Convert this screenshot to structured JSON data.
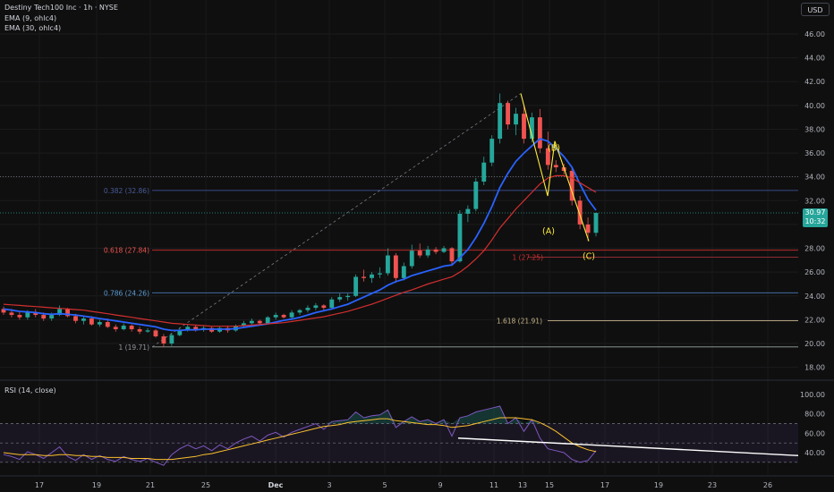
{
  "header": {
    "title": "Destiny Tech100 Inc · 1h · NYSE",
    "ema9": "EMA (9, ohlc4)",
    "ema30": "EMA (30, ohlc4)",
    "currency": "USD",
    "rsi_label": "RSI (14, close)"
  },
  "last_price": {
    "price": "30.97",
    "countdown": "10:32"
  },
  "colors": {
    "up": "#26a69a",
    "down": "#ef5350",
    "ema9": "#2962ff",
    "ema30": "#d32f2f",
    "rsi": "#7e57c2",
    "rsi_ma": "#fbc02d",
    "wave": "#ffeb3b",
    "fib_blue": "#2962ff",
    "fib_red": "#d32f2f",
    "fib_tan": "#c8b68a",
    "trendline": "#ffffff"
  },
  "chart_data": [
    {
      "type": "candlestick",
      "title": "Destiny Tech100 Inc · 1h · NYSE",
      "ylim": [
        17.0,
        47.5
      ],
      "y_ticks": [
        18,
        20,
        22,
        24,
        26,
        28,
        30,
        32,
        34,
        36,
        38,
        40,
        42,
        44,
        46
      ],
      "y_tick_labels": [
        "18.00",
        "20.00",
        "22.00",
        "24.00",
        "26.00",
        "28.00",
        "30.00",
        "32.00",
        "34.00",
        "36.00",
        "38.00",
        "40.00",
        "42.00",
        "44.00",
        "46.00"
      ],
      "x_tick_labels": [
        "17",
        "19",
        "21",
        "25",
        "Dec",
        "3",
        "5",
        "9",
        "11",
        "13",
        "15",
        "17",
        "19",
        "23",
        "26"
      ],
      "ohlc": [
        [
          22.9,
          23.1,
          22.4,
          22.6
        ],
        [
          22.6,
          22.9,
          22.2,
          22.4
        ],
        [
          22.4,
          22.7,
          22.0,
          22.2
        ],
        [
          22.2,
          22.8,
          22.0,
          22.6
        ],
        [
          22.6,
          22.9,
          22.2,
          22.4
        ],
        [
          22.4,
          22.6,
          21.9,
          22.1
        ],
        [
          22.1,
          22.6,
          21.9,
          22.4
        ],
        [
          22.4,
          23.2,
          22.3,
          22.9
        ],
        [
          22.9,
          23.0,
          22.2,
          22.3
        ],
        [
          22.3,
          22.5,
          21.7,
          21.9
        ],
        [
          21.9,
          22.3,
          21.6,
          22.1
        ],
        [
          22.1,
          22.3,
          21.5,
          21.6
        ],
        [
          21.6,
          22.0,
          21.4,
          21.8
        ],
        [
          21.8,
          22.1,
          21.3,
          21.4
        ],
        [
          21.4,
          21.6,
          21.0,
          21.2
        ],
        [
          21.2,
          21.7,
          21.1,
          21.5
        ],
        [
          21.5,
          21.6,
          21.0,
          21.2
        ],
        [
          21.2,
          21.4,
          20.8,
          21.0
        ],
        [
          21.0,
          21.3,
          20.9,
          21.1
        ],
        [
          21.1,
          21.2,
          20.5,
          20.6
        ],
        [
          20.6,
          20.8,
          19.7,
          20.0
        ],
        [
          20.0,
          20.9,
          19.8,
          20.7
        ],
        [
          20.7,
          21.3,
          20.6,
          21.1
        ],
        [
          21.1,
          21.6,
          21.0,
          21.4
        ],
        [
          21.4,
          21.5,
          21.0,
          21.2
        ],
        [
          21.2,
          21.5,
          21.0,
          21.3
        ],
        [
          21.3,
          21.4,
          20.9,
          21.0
        ],
        [
          21.0,
          21.4,
          20.9,
          21.3
        ],
        [
          21.3,
          21.5,
          20.9,
          21.1
        ],
        [
          21.1,
          21.6,
          21.0,
          21.5
        ],
        [
          21.5,
          21.9,
          21.4,
          21.7
        ],
        [
          21.7,
          22.1,
          21.6,
          21.9
        ],
        [
          21.9,
          22.0,
          21.6,
          21.7
        ],
        [
          21.7,
          22.3,
          21.6,
          22.2
        ],
        [
          22.2,
          22.6,
          22.0,
          22.4
        ],
        [
          22.4,
          22.5,
          22.1,
          22.2
        ],
        [
          22.2,
          22.8,
          22.1,
          22.6
        ],
        [
          22.6,
          22.9,
          22.4,
          22.8
        ],
        [
          22.8,
          23.2,
          22.6,
          23.0
        ],
        [
          23.0,
          23.4,
          22.8,
          23.2
        ],
        [
          23.2,
          23.3,
          22.8,
          23.0
        ],
        [
          23.0,
          23.9,
          22.9,
          23.7
        ],
        [
          23.7,
          24.2,
          23.5,
          23.9
        ],
        [
          23.9,
          24.2,
          23.6,
          24.0
        ],
        [
          24.0,
          25.8,
          23.9,
          25.6
        ],
        [
          25.6,
          26.2,
          25.2,
          25.5
        ],
        [
          25.5,
          26.0,
          25.1,
          25.8
        ],
        [
          25.8,
          26.4,
          25.5,
          25.9
        ],
        [
          25.9,
          28.0,
          25.7,
          27.4
        ],
        [
          27.4,
          27.6,
          25.1,
          25.5
        ],
        [
          25.5,
          26.8,
          25.3,
          26.5
        ],
        [
          26.5,
          28.3,
          26.3,
          27.8
        ],
        [
          27.8,
          28.4,
          27.2,
          27.4
        ],
        [
          27.4,
          28.2,
          27.2,
          27.9
        ],
        [
          27.9,
          28.1,
          27.5,
          27.7
        ],
        [
          27.7,
          28.2,
          27.6,
          28.0
        ],
        [
          28.0,
          28.1,
          26.5,
          26.9
        ],
        [
          26.9,
          31.2,
          26.8,
          30.9
        ],
        [
          30.9,
          31.6,
          30.2,
          31.3
        ],
        [
          31.3,
          33.9,
          31.1,
          33.6
        ],
        [
          33.6,
          35.7,
          33.3,
          35.2
        ],
        [
          35.2,
          37.5,
          34.9,
          37.2
        ],
        [
          37.2,
          41.0,
          36.8,
          40.2
        ],
        [
          40.2,
          40.4,
          38.0,
          38.4
        ],
        [
          38.4,
          39.8,
          37.5,
          39.3
        ],
        [
          39.3,
          40.0,
          36.8,
          37.2
        ],
        [
          37.2,
          39.4,
          36.9,
          39.0
        ],
        [
          39.0,
          39.7,
          36.0,
          36.4
        ],
        [
          36.4,
          37.8,
          34.6,
          35.0
        ],
        [
          35.0,
          35.4,
          34.4,
          34.8
        ],
        [
          34.8,
          35.1,
          34.2,
          34.5
        ],
        [
          34.5,
          34.8,
          31.6,
          32.0
        ],
        [
          32.0,
          32.4,
          29.6,
          30.0
        ],
        [
          30.0,
          30.6,
          28.6,
          29.3
        ],
        [
          29.3,
          31.0,
          29.0,
          30.97
        ]
      ],
      "series": [
        {
          "name": "EMA (9, ohlc4)",
          "values": [
            22.9,
            22.8,
            22.7,
            22.65,
            22.6,
            22.5,
            22.45,
            22.5,
            22.45,
            22.4,
            22.3,
            22.2,
            22.1,
            22.0,
            21.9,
            21.8,
            21.7,
            21.6,
            21.5,
            21.4,
            21.2,
            21.1,
            21.1,
            21.15,
            21.15,
            21.2,
            21.2,
            21.2,
            21.2,
            21.25,
            21.35,
            21.45,
            21.55,
            21.65,
            21.8,
            21.95,
            22.05,
            22.2,
            22.4,
            22.6,
            22.75,
            22.9,
            23.1,
            23.3,
            23.6,
            23.9,
            24.2,
            24.5,
            24.9,
            25.2,
            25.4,
            25.7,
            25.9,
            26.1,
            26.3,
            26.5,
            26.6,
            27.2,
            27.9,
            28.9,
            30.1,
            31.5,
            33.1,
            34.3,
            35.3,
            36.0,
            36.6,
            37.2,
            37.0,
            36.4,
            35.7,
            34.8,
            33.4,
            32.1,
            31.2
          ]
        },
        {
          "name": "EMA (30, ohlc4)",
          "values": [
            23.3,
            23.25,
            23.2,
            23.15,
            23.1,
            23.05,
            23.0,
            22.95,
            22.9,
            22.85,
            22.8,
            22.7,
            22.6,
            22.5,
            22.4,
            22.3,
            22.2,
            22.1,
            22.0,
            21.9,
            21.8,
            21.7,
            21.65,
            21.6,
            21.55,
            21.5,
            21.45,
            21.45,
            21.45,
            21.45,
            21.5,
            21.55,
            21.6,
            21.65,
            21.7,
            21.75,
            21.85,
            21.95,
            22.05,
            22.15,
            22.25,
            22.4,
            22.55,
            22.7,
            22.9,
            23.1,
            23.3,
            23.55,
            23.8,
            24.05,
            24.3,
            24.5,
            24.75,
            25.0,
            25.2,
            25.4,
            25.6,
            26.0,
            26.5,
            27.1,
            27.8,
            28.7,
            29.7,
            30.5,
            31.3,
            32.0,
            32.7,
            33.4,
            33.9,
            34.1,
            34.1,
            33.9,
            33.5,
            33.1,
            32.7
          ]
        }
      ],
      "fib_levels": [
        {
          "label": "0.382 (32.86)",
          "value": 32.86
        },
        {
          "label": "0.618 (27.84)",
          "value": 27.84
        },
        {
          "label": "0.786 (24.26)",
          "value": 24.26
        },
        {
          "label": "1 (19.71)",
          "value": 19.71
        },
        {
          "label": "1 (27.25)",
          "value": 27.25
        },
        {
          "label": "1.618 (21.91)",
          "value": 21.91
        }
      ],
      "reference_line": 34.0,
      "wave_labels": [
        "(A)",
        "(B)",
        "(C)"
      ],
      "wave_points": [
        [
          41.0,
          0
        ],
        [
          32.4,
          0
        ],
        [
          37.0,
          0
        ],
        [
          28.6,
          0
        ]
      ]
    },
    {
      "type": "line",
      "title": "RSI (14, close)",
      "ylim": [
        20,
        104
      ],
      "y_ticks": [
        40,
        60,
        80,
        100
      ],
      "y_tick_labels": [
        "40.00",
        "60.00",
        "80.00",
        "100.00"
      ],
      "bands": [
        30,
        50,
        70
      ],
      "series": [
        {
          "name": "RSI (14, close)",
          "values": [
            38,
            36,
            33,
            41,
            38,
            34,
            40,
            46,
            36,
            32,
            38,
            33,
            37,
            33,
            31,
            36,
            33,
            31,
            34,
            30,
            27,
            38,
            44,
            48,
            44,
            47,
            42,
            48,
            44,
            50,
            54,
            57,
            52,
            58,
            61,
            56,
            61,
            64,
            67,
            70,
            64,
            72,
            73,
            74,
            82,
            76,
            78,
            79,
            84,
            66,
            72,
            77,
            72,
            74,
            70,
            74,
            57,
            76,
            78,
            82,
            84,
            86,
            88,
            70,
            76,
            62,
            74,
            55,
            44,
            42,
            40,
            33,
            30,
            32,
            42
          ]
        },
        {
          "name": "RSI MA",
          "values": [
            40,
            39,
            38,
            38,
            38,
            37,
            37,
            38,
            38,
            37,
            37,
            36,
            36,
            35,
            35,
            35,
            34,
            34,
            34,
            33,
            33,
            33,
            34,
            35,
            36,
            38,
            39,
            41,
            43,
            45,
            47,
            49,
            51,
            53,
            55,
            57,
            59,
            61,
            63,
            65,
            67,
            68,
            69,
            71,
            72,
            73,
            74,
            75,
            75,
            73,
            72,
            71,
            70,
            69,
            69,
            68,
            66,
            67,
            68,
            70,
            72,
            74,
            76,
            76,
            76,
            75,
            74,
            71,
            67,
            62,
            56,
            50,
            46,
            43,
            41
          ]
        }
      ],
      "trendline": [
        55,
        37
      ]
    }
  ]
}
